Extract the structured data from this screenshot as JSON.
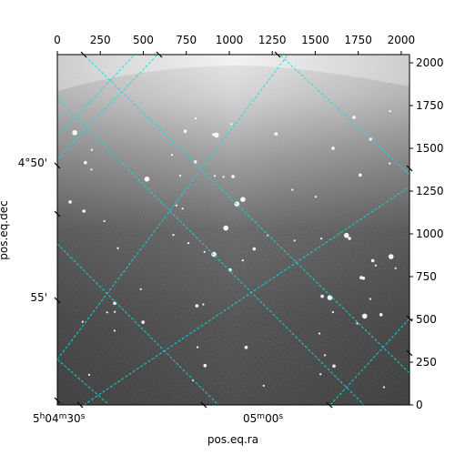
{
  "chart_data": {
    "type": "image",
    "xlabel": "pos.eq.ra",
    "ylabel": "pos.eq.dec",
    "pixel_axes": {
      "x_range": [
        0,
        2048
      ],
      "y_range": [
        0,
        2048
      ],
      "x_ticks": [
        0,
        250,
        500,
        750,
        1000,
        1250,
        1500,
        1750,
        2000
      ],
      "y_ticks": [
        0,
        250,
        500,
        750,
        1000,
        1250,
        1500,
        1750,
        2000
      ]
    },
    "world_axes": {
      "ra_ticks": [
        {
          "label_main": "5",
          "label_sup1": "h",
          "label_mid": "04",
          "label_sup2": "m",
          "label_end": "30",
          "label_sup3": "s"
        },
        {
          "label_main": "05",
          "label_sup1": "m",
          "label_end": "00",
          "label_sup2": "s"
        }
      ],
      "dec_ticks": [
        "4°50'",
        "55'"
      ]
    },
    "grid": true,
    "grid_color": "#00e5e5",
    "image_colormap": "gray",
    "image_description_stars": 80
  }
}
